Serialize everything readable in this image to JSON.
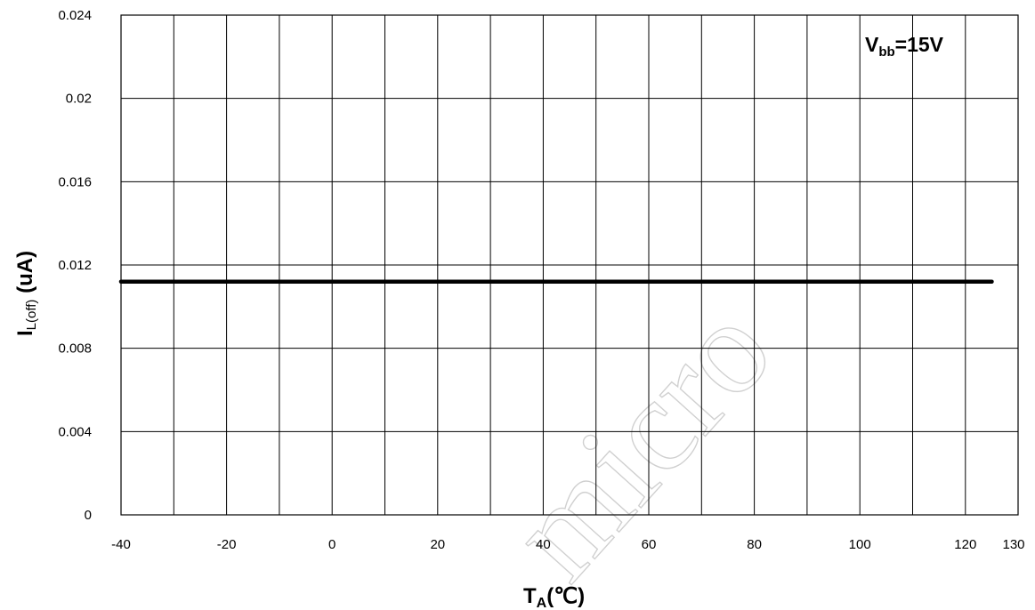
{
  "chart_data": {
    "type": "line",
    "xlabel": {
      "main": "T",
      "sub": "A",
      "unit": "(℃)"
    },
    "ylabel": {
      "main": "I",
      "sub": "L(off)",
      "unit": " (uA)"
    },
    "xlim": [
      -40,
      130
    ],
    "ylim": [
      0,
      0.024
    ],
    "x_tick_labels": [
      "-40",
      "-20",
      "0",
      "20",
      "40",
      "60",
      "80",
      "100",
      "120",
      "130"
    ],
    "y_tick_labels": [
      "0",
      "0.004",
      "0.008",
      "0.012",
      "0.016",
      "0.02",
      "0.024"
    ],
    "x_gridlines": [
      -40,
      -30,
      -20,
      -10,
      0,
      10,
      20,
      30,
      40,
      50,
      60,
      70,
      80,
      90,
      100,
      110,
      120
    ],
    "y_gridlines": [
      0,
      0.004,
      0.008,
      0.012,
      0.016,
      0.02,
      0.024
    ],
    "grid": true,
    "legend": "none",
    "annotation": {
      "main": "V",
      "sub": "bb",
      "value": "=15V"
    },
    "watermark": "micro",
    "series": [
      {
        "x": [
          -40,
          125
        ],
        "y": [
          0.0112,
          0.0112
        ],
        "color": "#000000"
      }
    ]
  }
}
